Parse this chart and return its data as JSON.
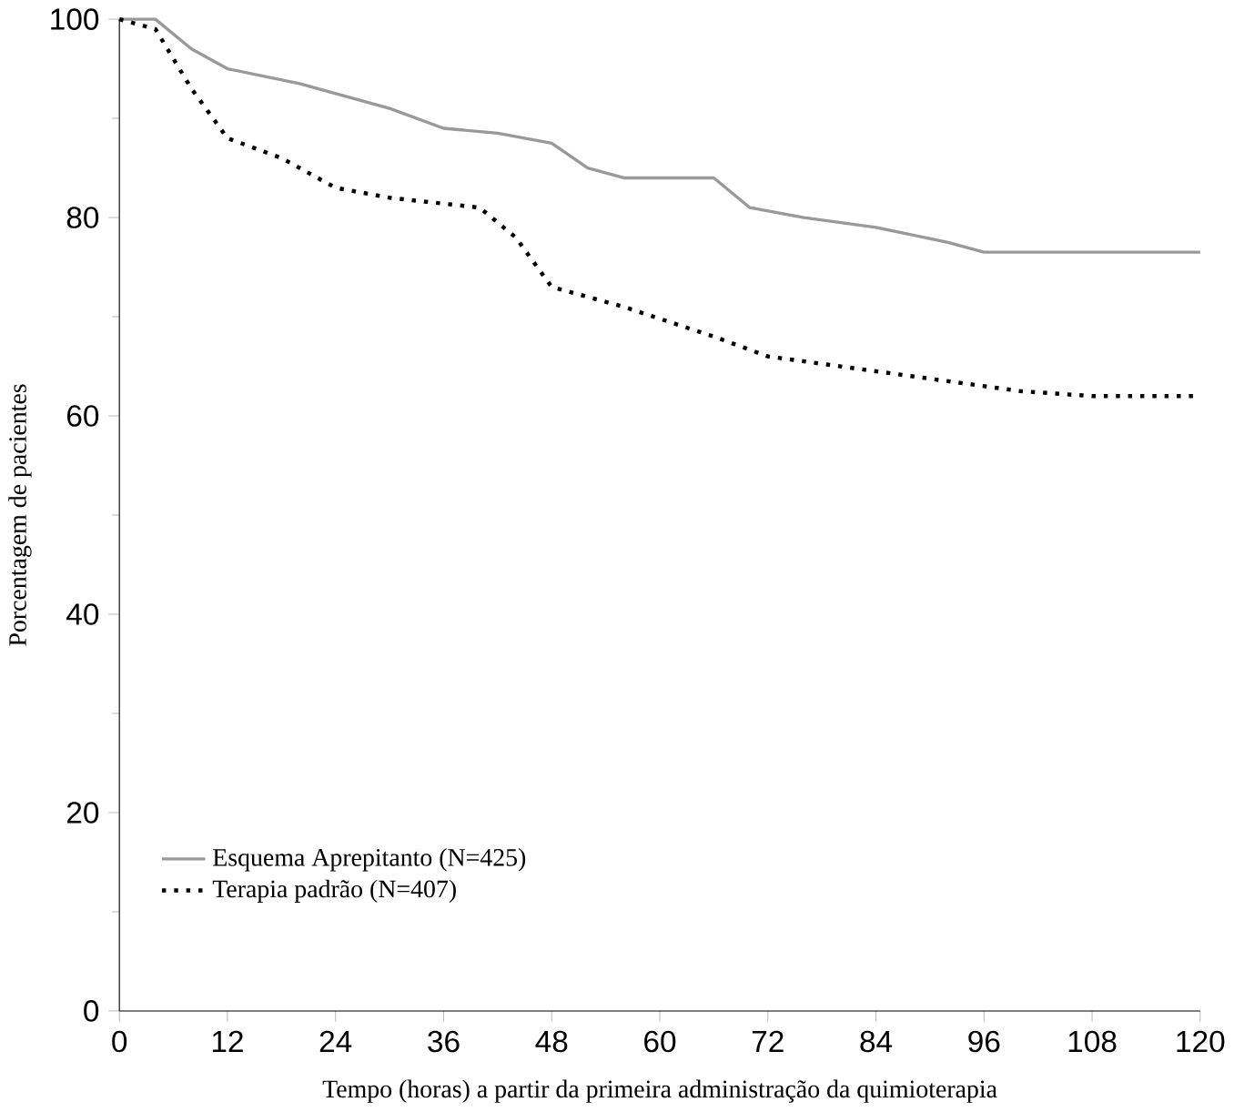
{
  "chart_data": {
    "type": "line",
    "xlabel": "Tempo (horas) a partir da primeira administração da quimioterapia",
    "ylabel": "Porcentagem de pacientes",
    "xlim": [
      0,
      120
    ],
    "xticks": [
      0,
      12,
      24,
      36,
      48,
      60,
      72,
      84,
      96,
      108,
      120
    ],
    "ylim": [
      0,
      100
    ],
    "yticks": [
      0,
      20,
      40,
      60,
      80,
      100
    ],
    "grid": false,
    "legend": "bottom left",
    "series": [
      {
        "name": "Esquema Aprepitanto (N=425)",
        "color": "#999999",
        "line_style": "solid",
        "x": [
          0,
          4,
          8,
          12,
          20,
          30,
          36,
          42,
          48,
          52,
          56,
          66,
          70,
          76,
          84,
          92,
          96,
          108,
          120
        ],
        "values": [
          100,
          100,
          97,
          95,
          93.5,
          91,
          89,
          88.5,
          87.5,
          85,
          84,
          84,
          81,
          80,
          79,
          77.5,
          76.5,
          76.5,
          76.5
        ]
      },
      {
        "name": "Terapia padrão (N=407)",
        "color": "#000000",
        "line_style": "dotted",
        "x": [
          0,
          4,
          8,
          12,
          18,
          24,
          30,
          40,
          44,
          48,
          56,
          66,
          72,
          84,
          92,
          100,
          108,
          120
        ],
        "values": [
          100,
          99,
          93,
          88,
          86,
          83,
          82,
          81,
          78,
          73,
          71,
          68,
          66,
          64.5,
          63.5,
          62.5,
          62,
          62
        ]
      }
    ]
  }
}
